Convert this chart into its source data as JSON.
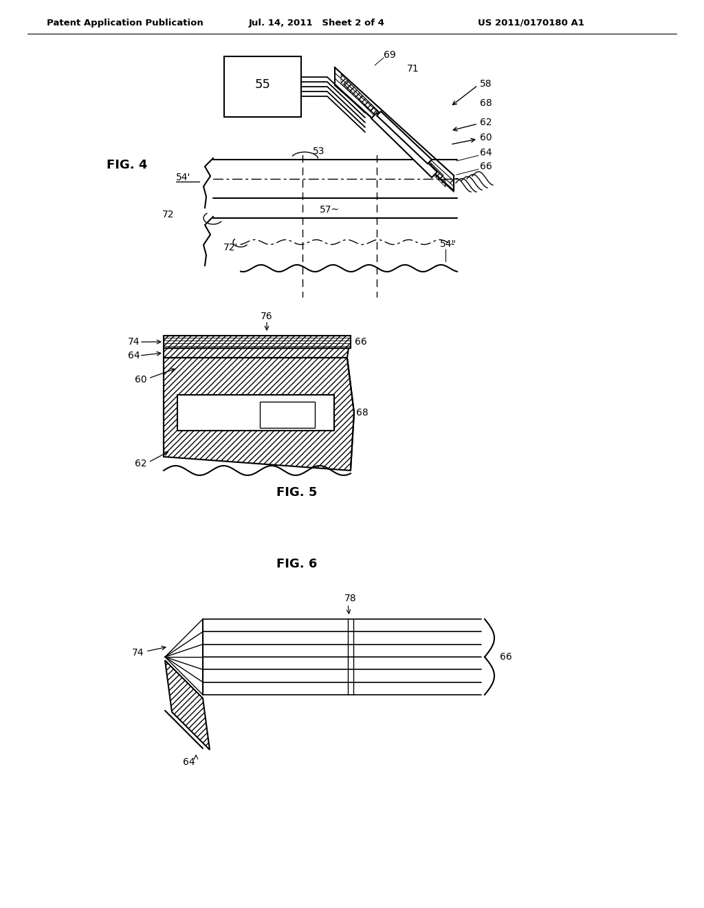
{
  "bg_color": "#ffffff",
  "header_left": "Patent Application Publication",
  "header_mid": "Jul. 14, 2011   Sheet 2 of 4",
  "header_right": "US 2011/0170180 A1",
  "fig4_label": "FIG. 4",
  "fig5_label": "FIG. 5",
  "fig6_label": "FIG. 6",
  "lw_thin": 0.8,
  "lw_med": 1.5,
  "lw_thick": 2.0
}
